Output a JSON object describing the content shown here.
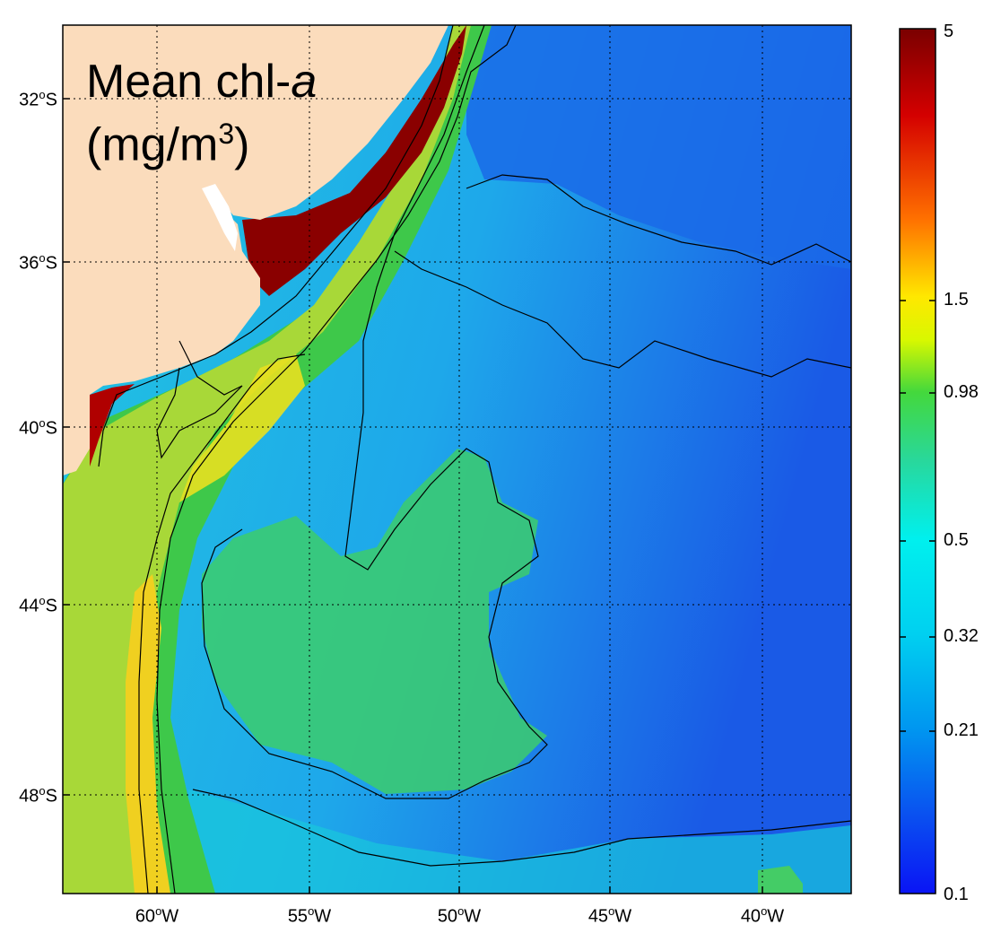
{
  "title": {
    "line1_text": "Mean chl-",
    "line1_italic": "a",
    "line2_text": "(mg/m",
    "line2_sup": "3",
    "line2_close": ")"
  },
  "latitude_ticks": [
    "32",
    "36",
    "40",
    "44",
    "48"
  ],
  "latitude_suffix": "S",
  "longitude_ticks": [
    "60",
    "55",
    "50",
    "45",
    "40"
  ],
  "longitude_suffix": "W",
  "degree_symbol": "o",
  "colorbar": {
    "labels": [
      "5",
      "1.5",
      "0.98",
      "0.5",
      "0.32",
      "0.21",
      "0.1"
    ],
    "colors": [
      "#7a0000",
      "#c80000",
      "#ff4000",
      "#ff9d00",
      "#ffe000",
      "#c8f000",
      "#2ad24a",
      "#1ed8a4",
      "#00e8e8",
      "#00c8f0",
      "#0096f0",
      "#0a50f0",
      "#0a1ef5"
    ]
  },
  "map_colors": {
    "land": "#fbdcbc",
    "deep_blue": "#1a5ae6",
    "mid_blue": "#1e9fe8",
    "cyan": "#26d9e6",
    "green": "#4cc86a",
    "yellow": "#f0d820",
    "dark_red": "#800000"
  }
}
